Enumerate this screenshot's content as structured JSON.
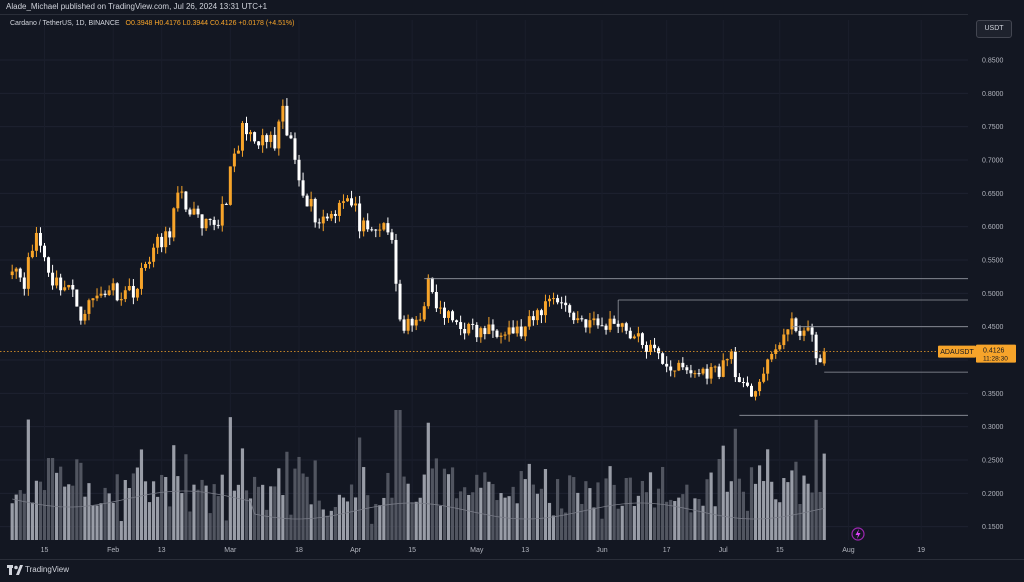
{
  "publisher": "Alade_Michael published on TradingView.com, Jul 26, 2024 13:31 UTC+1",
  "legend": {
    "symbol": "Cardano / TetherUS, 1D, BINANCE",
    "ohlc": "O0.3948 H0.4176 L0.3944 C0.4126 +0.0178 (+4.51%)"
  },
  "currency_button": "USDT",
  "brand": "TradingView",
  "colors": {
    "background": "#131722",
    "up": "#f7a42a",
    "down": "#ffffff",
    "volume_up": "#b2b5be",
    "volume_down": "#5d606b",
    "price_line": "#f7a42a",
    "level_label_bg": "#d1d4dc"
  },
  "icons": [
    "tradingview-logo-icon",
    "lightning-icon"
  ],
  "chart_data": {
    "type": "candlestick",
    "symbol": "ADAUSDT",
    "timeframe": "1D",
    "exchange": "BINANCE",
    "ylim": [
      0.13,
      0.88
    ],
    "y_ticks": [
      "0.8500",
      "0.8000",
      "0.7500",
      "0.7000",
      "0.6500",
      "0.6000",
      "0.5500",
      "0.5000",
      "0.4500",
      "0.4000",
      "0.3500",
      "0.3000",
      "0.2500",
      "0.2000",
      "0.1500"
    ],
    "x_ticks": [
      {
        "label": "15",
        "date": "2024-01-15"
      },
      {
        "label": "Feb",
        "date": "2024-02-01"
      },
      {
        "label": "13",
        "date": "2024-02-13"
      },
      {
        "label": "Mar",
        "date": "2024-03-01"
      },
      {
        "label": "18",
        "date": "2024-03-18"
      },
      {
        "label": "Apr",
        "date": "2024-04-01"
      },
      {
        "label": "15",
        "date": "2024-04-15"
      },
      {
        "label": "May",
        "date": "2024-05-01"
      },
      {
        "label": "13",
        "date": "2024-05-13"
      },
      {
        "label": "Jun",
        "date": "2024-06-01"
      },
      {
        "label": "17",
        "date": "2024-06-17"
      },
      {
        "label": "Jul",
        "date": "2024-07-01"
      },
      {
        "label": "15",
        "date": "2024-07-15"
      },
      {
        "label": "Aug",
        "date": "2024-08-01"
      },
      {
        "label": "19",
        "date": "2024-08-19"
      }
    ],
    "current_price": {
      "label": "ADAUSDT",
      "price": "0.4126",
      "countdown": "11:28:30"
    },
    "horizontal_levels": [
      {
        "price": 0.522,
        "label": "0.5220",
        "start": "2024-04-18"
      },
      {
        "price": 0.49,
        "label": "0.4900",
        "start": "2024-06-05"
      },
      {
        "price": 0.45,
        "label": "0.4500",
        "start": "2024-07-18"
      },
      {
        "price": 0.3818,
        "label": "0.3818",
        "start": "2024-07-26"
      },
      {
        "price": 0.317,
        "label": "0.3170",
        "start": "2024-07-05"
      }
    ],
    "anchors": [
      [
        "2024-01-07",
        0.548
      ],
      [
        "2024-01-10",
        0.52
      ],
      [
        "2024-01-13",
        0.59
      ],
      [
        "2024-01-17",
        0.52
      ],
      [
        "2024-01-21",
        0.51
      ],
      [
        "2024-01-24",
        0.47
      ],
      [
        "2024-01-27",
        0.49
      ],
      [
        "2024-01-31",
        0.51
      ],
      [
        "2024-02-03",
        0.5
      ],
      [
        "2024-02-07",
        0.51
      ],
      [
        "2024-02-10",
        0.56
      ],
      [
        "2024-02-14",
        0.58
      ],
      [
        "2024-02-17",
        0.64
      ],
      [
        "2024-02-20",
        0.63
      ],
      [
        "2024-02-23",
        0.59
      ],
      [
        "2024-02-27",
        0.61
      ],
      [
        "2024-02-29",
        0.65
      ],
      [
        "2024-03-03",
        0.72
      ],
      [
        "2024-03-05",
        0.76
      ],
      [
        "2024-03-07",
        0.71
      ],
      [
        "2024-03-09",
        0.73
      ],
      [
        "2024-03-12",
        0.72
      ],
      [
        "2024-03-14",
        0.76
      ],
      [
        "2024-03-16",
        0.72
      ],
      [
        "2024-03-18",
        0.68
      ],
      [
        "2024-03-21",
        0.63
      ],
      [
        "2024-03-23",
        0.61
      ],
      [
        "2024-03-26",
        0.62
      ],
      [
        "2024-03-29",
        0.65
      ],
      [
        "2024-04-01",
        0.62
      ],
      [
        "2024-04-04",
        0.58
      ],
      [
        "2024-04-07",
        0.6
      ],
      [
        "2024-04-10",
        0.58
      ],
      [
        "2024-04-12",
        0.46
      ],
      [
        "2024-04-13",
        0.45
      ],
      [
        "2024-04-16",
        0.45
      ],
      [
        "2024-04-19",
        0.51
      ],
      [
        "2024-04-22",
        0.47
      ],
      [
        "2024-04-28",
        0.45
      ],
      [
        "2024-05-01",
        0.44
      ],
      [
        "2024-05-08",
        0.45
      ],
      [
        "2024-05-12",
        0.44
      ],
      [
        "2024-05-15",
        0.46
      ],
      [
        "2024-05-20",
        0.5
      ],
      [
        "2024-05-25",
        0.465
      ],
      [
        "2024-06-01",
        0.45
      ],
      [
        "2024-06-05",
        0.46
      ],
      [
        "2024-06-08",
        0.44
      ],
      [
        "2024-06-12",
        0.42
      ],
      [
        "2024-06-18",
        0.39
      ],
      [
        "2024-06-24",
        0.38
      ],
      [
        "2024-06-30",
        0.385
      ],
      [
        "2024-07-03",
        0.41
      ],
      [
        "2024-07-05",
        0.36
      ],
      [
        "2024-07-08",
        0.35
      ],
      [
        "2024-07-12",
        0.39
      ],
      [
        "2024-07-15",
        0.43
      ],
      [
        "2024-07-18",
        0.45
      ],
      [
        "2024-07-21",
        0.445
      ],
      [
        "2024-07-23",
        0.43
      ],
      [
        "2024-07-25",
        0.395
      ],
      [
        "2024-07-26",
        0.4126
      ]
    ]
  }
}
